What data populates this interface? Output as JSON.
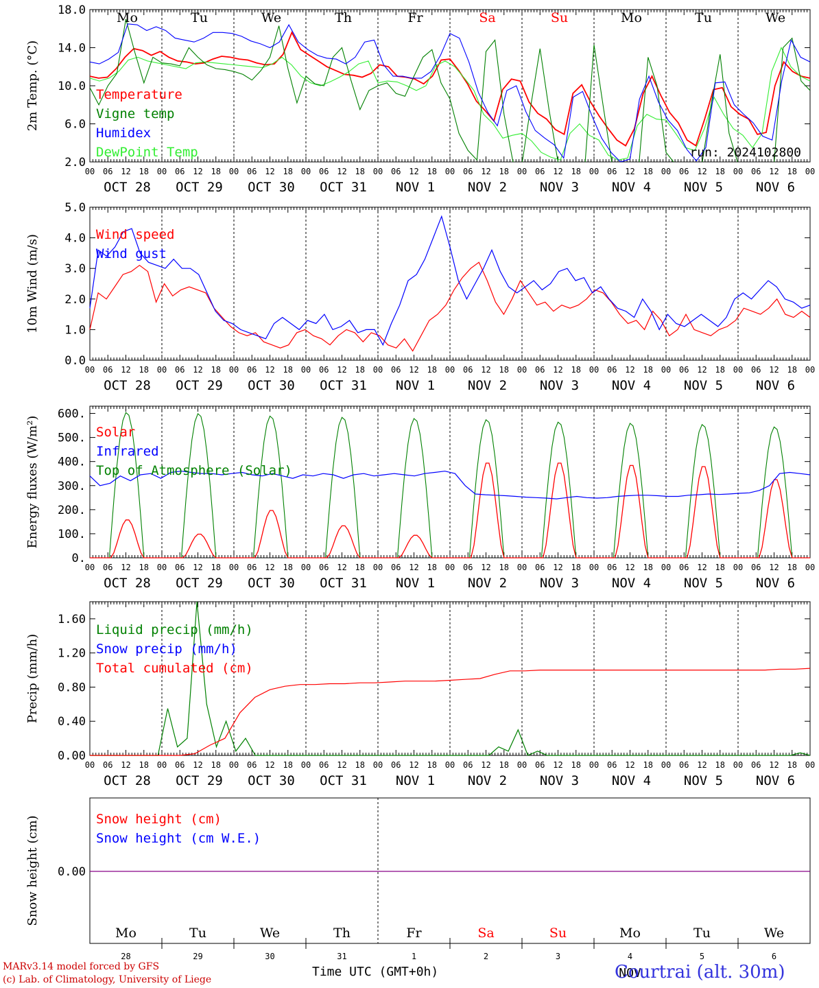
{
  "chart_data": [
    {
      "type": "line",
      "ylabel": "2m Temp. (°C)",
      "ylim": [
        2.0,
        18.0
      ],
      "yticks": [
        "18.0",
        "14.0",
        "10.0",
        "6.0",
        "2.0"
      ],
      "yvals": [
        18,
        14,
        10,
        6,
        2
      ],
      "run_label": "run: 2024102800",
      "legend": [
        {
          "name": "Temperature",
          "color": "#ff0000"
        },
        {
          "name": "Vigne temp",
          "color": "#008000"
        },
        {
          "name": "Humidex",
          "color": "#0000ff"
        },
        {
          "name": "DewPoint Temp",
          "color": "#33ee33"
        }
      ],
      "series": [
        {
          "name": "Temperature",
          "color": "#ff0000",
          "values": [
            11.0,
            10.8,
            10.9,
            11.8,
            13.0,
            13.9,
            13.7,
            13.2,
            13.6,
            13.0,
            12.6,
            12.5,
            12.3,
            12.4,
            12.8,
            13.1,
            13.0,
            12.8,
            12.7,
            12.4,
            12.2,
            12.3,
            13.3,
            15.6,
            13.8,
            13.2,
            12.6,
            12.0,
            11.6,
            11.2,
            11.1,
            10.9,
            11.3,
            12.2,
            12.0,
            11.0,
            10.9,
            10.7,
            10.2,
            11.0,
            12.7,
            12.8,
            11.6,
            10.2,
            8.4,
            7.4,
            6.3,
            9.6,
            10.7,
            10.5,
            8.3,
            7.1,
            6.5,
            5.4,
            4.9,
            9.2,
            10.1,
            8.3,
            6.8,
            5.5,
            4.3,
            3.7,
            5.5,
            9.2,
            11.0,
            9.0,
            7.2,
            6.1,
            4.3,
            3.7,
            6.5,
            9.6,
            9.8,
            7.8,
            7.0,
            6.5,
            4.9,
            5.1,
            10.0,
            12.5,
            11.5,
            11.0,
            10.8
          ]
        },
        {
          "name": "Vigne temp",
          "color": "#008000",
          "values": [
            9.8,
            8.0,
            10.0,
            11.3,
            17.0,
            13.5,
            10.3,
            13.0,
            12.4,
            12.3,
            12.1,
            14.0,
            13.0,
            12.2,
            11.8,
            11.7,
            11.5,
            11.2,
            10.6,
            11.6,
            13.0,
            16.3,
            11.8,
            8.2,
            11.0,
            10.2,
            10.0,
            13.0,
            14.0,
            10.6,
            7.5,
            9.5,
            10.0,
            10.3,
            9.2,
            8.9,
            11.0,
            13.0,
            13.8,
            10.3,
            8.6,
            5.0,
            3.2,
            2.2,
            13.6,
            14.8,
            7.0,
            2.0,
            1.8,
            8.0,
            13.9,
            7.5,
            2.0,
            1.8,
            1.8,
            1.8,
            14.3,
            8.0,
            1.8,
            1.8,
            1.8,
            1.8,
            13.0,
            10.0,
            3.0,
            1.8,
            1.8,
            1.8,
            1.8,
            8.0,
            13.3,
            5.0,
            1.8,
            1.8,
            1.8,
            1.8,
            1.8,
            14.0,
            15.0,
            10.5,
            9.5
          ]
        },
        {
          "name": "Humidex",
          "color": "#0000ff",
          "values": [
            12.5,
            12.3,
            12.8,
            13.5,
            16.5,
            16.4,
            15.8,
            16.2,
            15.8,
            15.0,
            14.8,
            14.6,
            15.0,
            15.6,
            15.6,
            15.5,
            15.2,
            14.7,
            14.4,
            14.0,
            14.6,
            16.4,
            14.6,
            13.8,
            13.2,
            12.9,
            12.8,
            12.3,
            13.0,
            14.6,
            14.8,
            12.2,
            11.0,
            11.0,
            10.8,
            10.8,
            11.5,
            13.2,
            15.5,
            15.0,
            12.5,
            9.3,
            7.2,
            5.8,
            9.5,
            10.0,
            7.3,
            5.3,
            4.5,
            3.8,
            2.4,
            8.8,
            9.4,
            6.8,
            4.5,
            3.0,
            2.0,
            2.3,
            8.6,
            11.0,
            8.3,
            6.4,
            5.3,
            3.3,
            2.1,
            3.5,
            10.3,
            10.4,
            8.0,
            7.0,
            6.1,
            4.7,
            4.3,
            10.5,
            14.8,
            13.0,
            12.5
          ]
        },
        {
          "name": "DewPoint Temp",
          "color": "#33ee33",
          "values": [
            10.8,
            10.5,
            10.8,
            11.5,
            12.7,
            13.0,
            12.6,
            12.4,
            12.2,
            12.0,
            11.8,
            12.4,
            12.5,
            12.4,
            12.3,
            12.2,
            12.1,
            12.0,
            11.9,
            12.3,
            13.0,
            12.2,
            11.0,
            10.3,
            10.0,
            10.4,
            10.9,
            11.5,
            12.3,
            12.6,
            10.3,
            10.5,
            10.4,
            10.0,
            9.5,
            10.0,
            12.1,
            12.6,
            12.0,
            10.8,
            9.5,
            7.0,
            6.0,
            4.5,
            4.8,
            5.0,
            4.2,
            3.0,
            2.5,
            2.2,
            5.0,
            6.0,
            4.8,
            4.3,
            2.7,
            2.2,
            2.4,
            5.8,
            7.0,
            6.5,
            6.4,
            5.0,
            3.5,
            3.2,
            5.5,
            8.8,
            7.0,
            5.5,
            4.8,
            3.5,
            5.0,
            11.5,
            14.0,
            12.0,
            11.0,
            10.5
          ]
        }
      ]
    },
    {
      "type": "line",
      "ylabel": "10m Wind (m/s)",
      "ylim": [
        0.0,
        5.0
      ],
      "yticks": [
        "5.0",
        "4.0",
        "3.0",
        "2.0",
        "1.0",
        "0.0"
      ],
      "yvals": [
        5,
        4,
        3,
        2,
        1,
        0
      ],
      "legend": [
        {
          "name": "Wind speed",
          "color": "#ff0000"
        },
        {
          "name": "Wind gust",
          "color": "#0000ff"
        }
      ],
      "series": [
        {
          "name": "Wind speed",
          "color": "#ff0000",
          "values": [
            1.0,
            2.2,
            2.0,
            2.4,
            2.8,
            2.9,
            3.1,
            2.9,
            1.9,
            2.5,
            2.1,
            2.3,
            2.4,
            2.3,
            2.2,
            1.7,
            1.4,
            1.1,
            0.9,
            0.8,
            0.9,
            0.6,
            0.5,
            0.4,
            0.5,
            0.9,
            1.0,
            0.8,
            0.7,
            0.5,
            0.8,
            1.0,
            0.9,
            0.6,
            0.9,
            0.8,
            0.5,
            0.4,
            0.7,
            0.3,
            0.8,
            1.3,
            1.5,
            1.8,
            2.3,
            2.7,
            3.0,
            3.2,
            2.6,
            1.9,
            1.5,
            2.0,
            2.6,
            2.2,
            1.8,
            1.9,
            1.6,
            1.8,
            1.7,
            1.8,
            2.0,
            2.3,
            2.2,
            1.9,
            1.5,
            1.2,
            1.3,
            1.0,
            1.6,
            1.3,
            0.8,
            1.0,
            1.5,
            1.0,
            0.9,
            0.8,
            1.0,
            1.1,
            1.3,
            1.7,
            1.6,
            1.5,
            1.7,
            2.0,
            1.5,
            1.4,
            1.6,
            1.4
          ]
        },
        {
          "name": "Wind gust",
          "color": "#0000ff",
          "values": [
            1.7,
            3.6,
            3.4,
            3.7,
            4.2,
            4.3,
            3.5,
            3.2,
            3.1,
            3.0,
            3.3,
            3.0,
            3.0,
            2.8,
            2.2,
            1.6,
            1.3,
            1.2,
            1.0,
            0.9,
            0.8,
            0.7,
            1.2,
            1.4,
            1.2,
            1.0,
            1.3,
            1.2,
            1.5,
            1.0,
            1.1,
            1.3,
            0.9,
            1.0,
            1.0,
            0.5,
            1.2,
            1.8,
            2.6,
            2.8,
            3.3,
            4.0,
            4.7,
            3.7,
            2.6,
            2.0,
            2.5,
            3.0,
            3.6,
            2.9,
            2.4,
            2.2,
            2.4,
            2.6,
            2.3,
            2.5,
            2.9,
            3.0,
            2.6,
            2.7,
            2.2,
            2.4,
            2.0,
            1.7,
            1.6,
            1.4,
            2.0,
            1.6,
            1.0,
            1.5,
            1.2,
            1.1,
            1.3,
            1.5,
            1.3,
            1.1,
            1.4,
            2.0,
            2.2,
            2.0,
            2.3,
            2.6,
            2.4,
            2.0,
            1.9,
            1.7,
            1.8
          ]
        }
      ]
    },
    {
      "type": "line",
      "ylabel": "Energy fluxes (W/m²)",
      "ylim": [
        0,
        630
      ],
      "yticks": [
        "600.",
        "500.",
        "400.",
        "300.",
        "200.",
        "100.",
        "0."
      ],
      "yvals": [
        600,
        500,
        400,
        300,
        200,
        100,
        0
      ],
      "legend": [
        {
          "name": "Solar",
          "color": "#ff0000"
        },
        {
          "name": "Infrared",
          "color": "#0000ff"
        },
        {
          "name": "Top of Atmosphere (Solar)",
          "color": "#008000"
        }
      ],
      "solar_peaks": [
        160,
        100,
        200,
        135,
        95,
        400,
        400,
        390,
        385,
        330
      ],
      "toa_peaks": [
        605,
        600,
        590,
        585,
        580,
        575,
        565,
        560,
        555,
        545
      ],
      "ir_values": [
        340,
        300,
        310,
        340,
        320,
        345,
        350,
        330,
        355,
        360,
        355,
        350,
        350,
        345,
        350,
        355,
        345,
        340,
        350,
        340,
        330,
        345,
        340,
        350,
        345,
        330,
        345,
        350,
        340,
        345,
        350,
        345,
        340,
        350,
        355,
        360,
        350,
        300,
        265,
        262,
        260,
        258,
        255,
        252,
        250,
        248,
        245,
        250,
        255,
        250,
        248,
        250,
        255,
        258,
        260,
        260,
        258,
        255,
        255,
        260,
        262,
        265,
        263,
        265,
        268,
        270,
        280,
        300,
        350,
        355,
        350,
        345
      ]
    },
    {
      "type": "line",
      "ylabel": "Precip (mm/h)",
      "ylim": [
        0.0,
        1.8
      ],
      "yticks": [
        "1.60",
        "1.20",
        "0.80",
        "0.40",
        "0.00"
      ],
      "yvals": [
        1.6,
        1.2,
        0.8,
        0.4,
        0.0
      ],
      "legend": [
        {
          "name": "Liquid precip (mm/h)",
          "color": "#008000"
        },
        {
          "name": "Snow precip (mm/h)",
          "color": "#0000ff"
        },
        {
          "name": "Total cumulated (cm)",
          "color": "#ff0000"
        }
      ],
      "series": [
        {
          "name": "Liquid precip (mm/h)",
          "color": "#008000",
          "values": [
            0,
            0,
            0,
            0,
            0,
            0,
            0,
            0,
            0.55,
            0.1,
            0.2,
            1.8,
            0.6,
            0.1,
            0.4,
            0.05,
            0.2,
            0,
            0,
            0,
            0,
            0,
            0,
            0,
            0,
            0,
            0,
            0,
            0,
            0,
            0,
            0,
            0,
            0,
            0,
            0,
            0,
            0,
            0,
            0,
            0,
            0,
            0.1,
            0.05,
            0.3,
            0,
            0.05,
            0,
            0,
            0,
            0,
            0,
            0,
            0,
            0,
            0,
            0,
            0,
            0,
            0,
            0,
            0,
            0,
            0,
            0,
            0,
            0,
            0,
            0,
            0,
            0,
            0,
            0,
            0.03,
            0
          ]
        },
        {
          "name": "Total cumulated (cm)",
          "color": "#ff0000",
          "values": [
            0,
            0,
            0,
            0,
            0,
            0,
            0,
            0.02,
            0.12,
            0.2,
            0.5,
            0.68,
            0.77,
            0.81,
            0.83,
            0.83,
            0.84,
            0.84,
            0.85,
            0.85,
            0.86,
            0.87,
            0.87,
            0.87,
            0.88,
            0.89,
            0.9,
            0.95,
            0.99,
            0.99,
            1.0,
            1.0,
            1.0,
            1.0,
            1.0,
            1.0,
            1.0,
            1.0,
            1.0,
            1.0,
            1.0,
            1.0,
            1.0,
            1.0,
            1.0,
            1.0,
            1.01,
            1.01,
            1.02
          ]
        }
      ]
    },
    {
      "type": "line",
      "ylabel": "Snow height (cm)",
      "yticks": [
        "0.00"
      ],
      "legend": [
        {
          "name": "Snow height (cm)",
          "color": "#ff0000"
        },
        {
          "name": "Snow height (cm W.E.)",
          "color": "#0000ff"
        }
      ],
      "series": [
        {
          "name": "Snow height (cm)",
          "color": "#ff0000",
          "values": [
            0,
            0
          ]
        },
        {
          "name": "Snow height (cm W.E.)",
          "color": "#0000ff",
          "values": [
            0,
            0
          ]
        }
      ]
    }
  ],
  "x_axis": {
    "hour_ticks": [
      "00",
      "06",
      "12",
      "18"
    ],
    "date_labels": [
      "OCT 28",
      "OCT 29",
      "OCT 30",
      "OCT 31",
      "NOV  1",
      "NOV  2",
      "NOV  3",
      "NOV  4",
      "NOV  5",
      "NOV  6"
    ],
    "end_tick": "00"
  },
  "weekdays": [
    {
      "label": "Mo",
      "color": "#000000"
    },
    {
      "label": "Tu",
      "color": "#000000"
    },
    {
      "label": "We",
      "color": "#000000"
    },
    {
      "label": "Th",
      "color": "#000000"
    },
    {
      "label": "Fr",
      "color": "#000000"
    },
    {
      "label": "Sa",
      "color": "#ff0000"
    },
    {
      "label": "Su",
      "color": "#ff0000"
    },
    {
      "label": "Mo",
      "color": "#000000"
    },
    {
      "label": "Tu",
      "color": "#000000"
    },
    {
      "label": "We",
      "color": "#000000"
    }
  ],
  "bottom_day_numbers": [
    "28",
    "29",
    "30",
    "31",
    "1",
    "2",
    "3",
    "4",
    "5",
    "6"
  ],
  "bottom_month": "NOV",
  "footer": {
    "model_line": "MARv3.14 model forced by GFS",
    "copyright_line": "(c) Lab. of Climatology, University of Liege",
    "time_axis_label": "Time UTC (GMT+0h)",
    "location": "Courtrai (alt. 30m)"
  }
}
